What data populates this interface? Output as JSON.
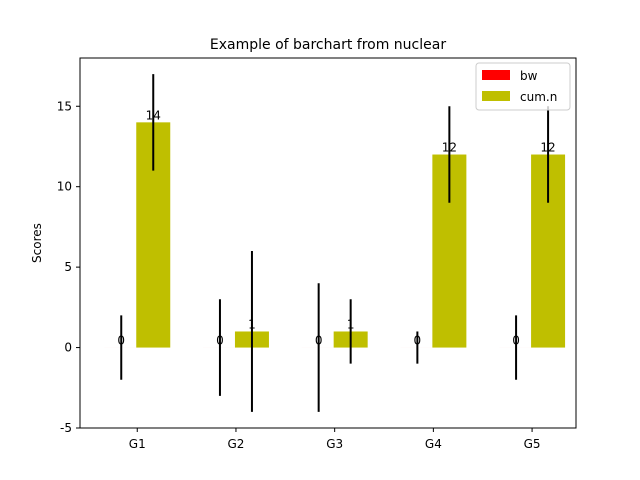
{
  "chart_data": {
    "type": "bar",
    "title": "Example of barchart from nuclear",
    "xlabel": "",
    "ylabel": "Scores",
    "categories": [
      "G1",
      "G2",
      "G3",
      "G4",
      "G5"
    ],
    "ylim": [
      -5,
      18
    ],
    "yticks": [
      -5,
      0,
      5,
      10,
      15
    ],
    "grid": false,
    "legend_position": "top-right",
    "series": [
      {
        "name": "bw",
        "color": "#ff0000",
        "values": [
          0,
          0,
          0,
          0,
          0
        ],
        "errors": [
          2,
          3,
          4,
          1,
          2
        ]
      },
      {
        "name": "cum.n",
        "color": "#bfbf00",
        "values": [
          14,
          1,
          1,
          12,
          12
        ],
        "errors": [
          3,
          5,
          2,
          3,
          3
        ]
      }
    ]
  }
}
